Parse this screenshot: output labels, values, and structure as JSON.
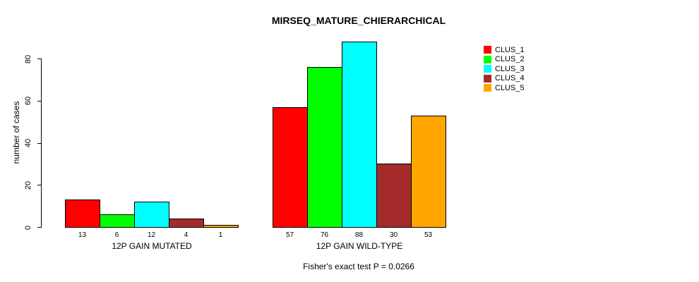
{
  "chart_data": {
    "type": "bar",
    "title": "MIRSEQ_MATURE_CHIERARCHICAL",
    "xlabel": "",
    "ylabel": "number of cases",
    "ylim": [
      0,
      88
    ],
    "yticks": [
      0,
      20,
      40,
      60,
      80
    ],
    "grid": false,
    "legend_position": "right",
    "categories": [
      "12P GAIN MUTATED",
      "12P GAIN WILD-TYPE"
    ],
    "series": [
      {
        "name": "CLUS_1",
        "color": "#FF0000",
        "values": [
          13,
          57
        ]
      },
      {
        "name": "CLUS_2",
        "color": "#00FF00",
        "values": [
          6,
          76
        ]
      },
      {
        "name": "CLUS_3",
        "color": "#00FFFF",
        "values": [
          12,
          88
        ]
      },
      {
        "name": "CLUS_4",
        "color": "#A52A2A",
        "values": [
          4,
          30
        ]
      },
      {
        "name": "CLUS_5",
        "color": "#FFA500",
        "values": [
          1,
          53
        ]
      }
    ],
    "bar_value_labels": {
      "12P GAIN MUTATED": [
        "13",
        "6",
        "12",
        "4",
        "1"
      ],
      "12P GAIN WILD-TYPE": [
        "57",
        "76",
        "88",
        "30",
        "53"
      ]
    },
    "annotation": "Fisher's exact test P = 0.0266"
  },
  "colors": {
    "axis": "#000000",
    "background": "#FFFFFF",
    "bar_border": "#000000"
  }
}
